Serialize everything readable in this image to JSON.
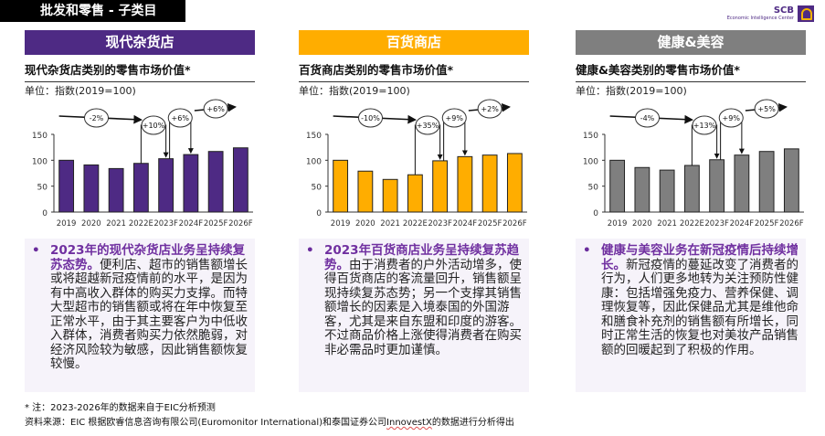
{
  "header": {
    "title": "批发和零售 - 子类目"
  },
  "logo": {
    "name": "SCB",
    "subtitle": "Economic Intelligence Center"
  },
  "panels": [
    {
      "category": "现代杂货店",
      "subtitle": "现代杂货店类别的零售市场价值*",
      "unit": "单位：指数(2019=100)",
      "color": "#4e2a84",
      "note_bold": "2023年的现代杂货店业务呈持续复苏态势。",
      "note_text": "便利店、超市的销售额增长或将超越新冠疫情前的水平，是因为有中高收入群体的购买力支撑。而特大型超市的销售额或将在年中恢复至正常水平，由于其主要客户为中低收入群体，消费者购买力依然脆弱，对经济风险较为敏感，因此销售额恢复较慢。"
    },
    {
      "category": "百货商店",
      "subtitle": "百货商店类别的零售市场价值*",
      "unit": "单位：指数(2019=100)",
      "color": "#ffad00",
      "note_bold": "2023年百货商店业务呈持续复苏趋势。",
      "note_text": "由于消费者的户外活动增多，使得百货商店的客流量回升，销售额呈现持续复苏态势；另一个支撑其销售额增长的因素是入境泰国的外国游客，尤其是来自东盟和印度的游客。不过商品价格上涨使得消费者在购买非必需品时更加谨慎。"
    },
    {
      "category": "健康&美容",
      "subtitle": "健康&美容类别的零售市场价值*",
      "unit": "单位：指数(2019=100)",
      "color": "#7f7f7f",
      "note_bold": "健康与美容业务在新冠疫情后持续增长。",
      "note_text": "新冠疫情的蔓延改变了消费者的行为，人们更多地转为关注预防性健康：包括增强免疫力、营养保健、调理恢复等，因此保健品尤其是维他命和膳食补充剂的销售额有所增长，同时正常生活的恢复也对美妆产品销售额的回暖起到了积极的作用。"
    }
  ],
  "chart_data": [
    {
      "type": "bar",
      "categories": [
        "2019",
        "2020",
        "2021",
        "2022E",
        "2023F",
        "2024F",
        "2025F",
        "2026F"
      ],
      "values": [
        100,
        91,
        84,
        94,
        103,
        111,
        117,
        124
      ],
      "ylim": [
        0,
        150
      ],
      "yticks": [
        0,
        50,
        100,
        150
      ],
      "color": "#4e2a84",
      "annotations": [
        "-2%",
        "+10%",
        "+6%",
        "+6%"
      ]
    },
    {
      "type": "bar",
      "categories": [
        "2019",
        "2020",
        "2021",
        "2022E",
        "2023F",
        "2024F",
        "2025F",
        "2026F"
      ],
      "values": [
        100,
        79,
        63,
        72,
        99,
        107,
        110,
        113
      ],
      "ylim": [
        0,
        150
      ],
      "yticks": [
        0,
        50,
        100,
        150
      ],
      "color": "#ffad00",
      "annotations": [
        "-10%",
        "+35%",
        "+9%",
        "+2%"
      ]
    },
    {
      "type": "bar",
      "categories": [
        "2019",
        "2020",
        "2021",
        "2022E",
        "2023F",
        "2024F",
        "2025F",
        "2026F"
      ],
      "values": [
        100,
        86,
        81,
        90,
        101,
        110,
        117,
        122
      ],
      "ylim": [
        0,
        150
      ],
      "yticks": [
        0,
        50,
        100,
        150
      ],
      "color": "#7f7f7f",
      "annotations": [
        "-4%",
        "+13%",
        "+9%",
        "+5%"
      ]
    }
  ],
  "footer": {
    "note": "* 注：2023-2026年的数据来自于EIC分析预测",
    "source_pre": "资料来源：EIC 根据欧睿信息咨询有限公司(Euromonitor International)和泰国证券公司",
    "source_mid": "InnovestX",
    "source_post": "的数据进行分析得出"
  }
}
